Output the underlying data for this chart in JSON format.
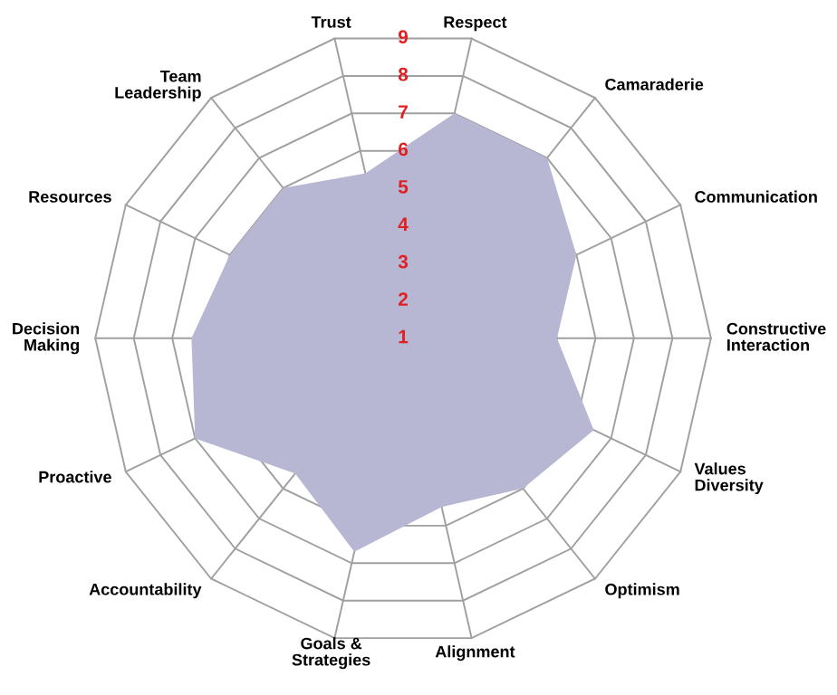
{
  "chart_data": {
    "type": "radar",
    "categories": [
      "Respect",
      "Camaraderie",
      "Communication",
      "Constructive\nInteraction",
      "Values\nDiversity",
      "Optimism",
      "Alignment",
      "Goals &\nStrategies",
      "Accountability",
      "Proactive",
      "Decision\nMaking",
      "Resources",
      "Team\nLeadership",
      "Trust"
    ],
    "series": [
      {
        "color": "#b7b7d4",
        "values": [
          7,
          7,
          6,
          5,
          6.5,
          6,
          5.5,
          6.7,
          5.5,
          7,
          6.5,
          6,
          6,
          5.4
        ]
      }
    ],
    "ylim": [
      1,
      9
    ],
    "yticks": [
      1,
      2,
      3,
      4,
      5,
      6,
      7,
      8,
      9
    ],
    "grid": true
  }
}
